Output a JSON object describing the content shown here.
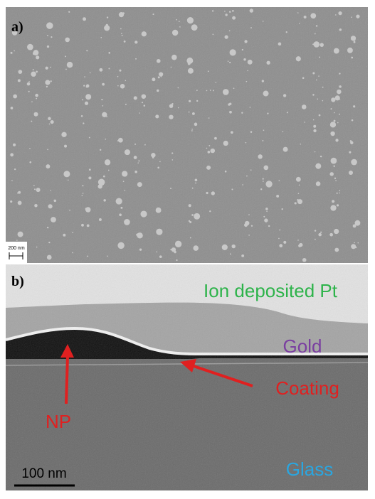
{
  "panels": [
    {
      "label": "a)",
      "scale_bar": "200 nm"
    },
    {
      "label": "b)",
      "scale_bar": "100 nm",
      "annotations": [
        "Ion deposited Pt",
        "Gold",
        "Coating",
        "NP",
        "Glass"
      ]
    }
  ]
}
